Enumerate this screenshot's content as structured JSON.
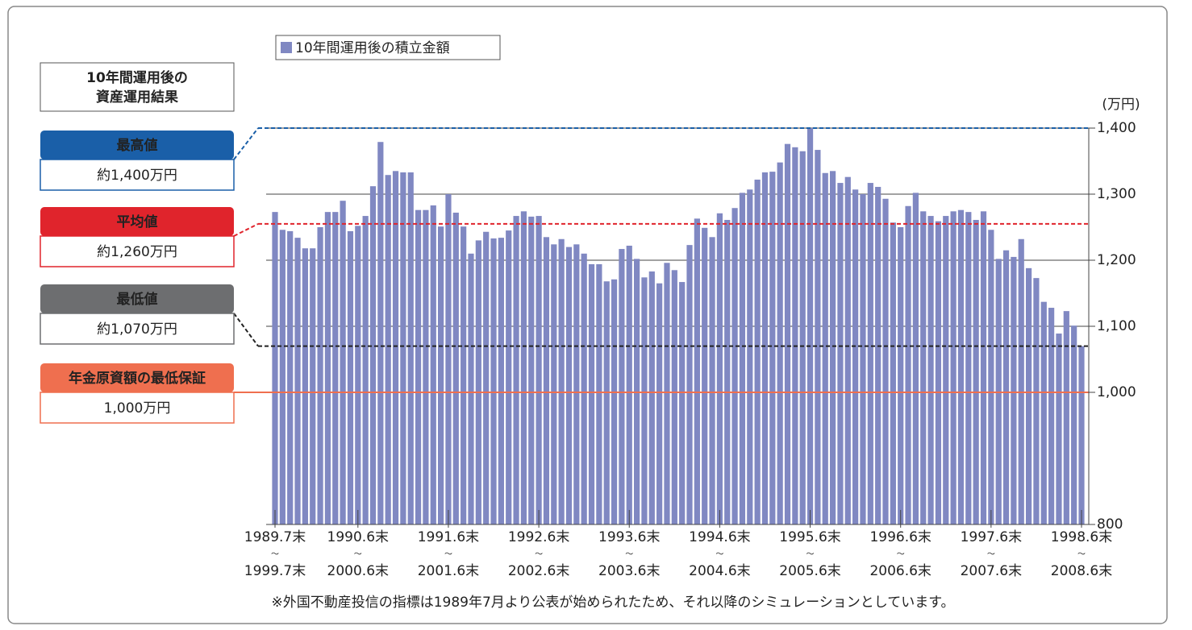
{
  "chart_data": {
    "type": "bar",
    "panel_title": [
      "10年間運用後の",
      "資産運用結果"
    ],
    "unit": "(万円)",
    "note": "※外国不動産投信の指標は1989年7月より公表が始められたため、それ以降のシミュレーションとしています。",
    "series": [
      {
        "name": "10年間運用後の積立金額",
        "color": "#8088c2",
        "values": [
          1273,
          1246,
          1244,
          1234,
          1218,
          1218,
          1250,
          1273,
          1273,
          1290,
          1244,
          1252,
          1267,
          1312,
          1379,
          1329,
          1335,
          1333,
          1333,
          1276,
          1276,
          1283,
          1251,
          1300,
          1272,
          1251,
          1210,
          1230,
          1243,
          1233,
          1234,
          1245,
          1267,
          1274,
          1266,
          1267,
          1235,
          1224,
          1232,
          1220,
          1224,
          1210,
          1194,
          1194,
          1168,
          1171,
          1217,
          1222,
          1202,
          1174,
          1183,
          1165,
          1196,
          1185,
          1167,
          1223,
          1263,
          1249,
          1235,
          1271,
          1261,
          1279,
          1302,
          1307,
          1322,
          1333,
          1334,
          1348,
          1376,
          1371,
          1365,
          1400,
          1367,
          1332,
          1335,
          1317,
          1326,
          1307,
          1300,
          1317,
          1311,
          1293,
          1257,
          1250,
          1282,
          1302,
          1274,
          1267,
          1259,
          1267,
          1274,
          1276,
          1273,
          1261,
          1274,
          1246,
          1202,
          1215,
          1205,
          1232,
          1188,
          1173,
          1137,
          1128,
          1089,
          1123,
          1101,
          1070
        ]
      }
    ],
    "categories": [
      "1989.7末〜1999.7末",
      null,
      null,
      null,
      null,
      null,
      null,
      null,
      null,
      null,
      null,
      "1990.6末〜2000.6末",
      null,
      null,
      null,
      null,
      null,
      null,
      null,
      null,
      null,
      null,
      null,
      "1991.6末〜2001.6末",
      null,
      null,
      null,
      null,
      null,
      null,
      null,
      null,
      null,
      null,
      null,
      "1992.6末〜2002.6末",
      null,
      null,
      null,
      null,
      null,
      null,
      null,
      null,
      null,
      null,
      null,
      "1993.6末〜2003.6末",
      null,
      null,
      null,
      null,
      null,
      null,
      null,
      null,
      null,
      null,
      null,
      "1994.6末〜2004.6末",
      null,
      null,
      null,
      null,
      null,
      null,
      null,
      null,
      null,
      null,
      null,
      "1995.6末〜2005.6末",
      null,
      null,
      null,
      null,
      null,
      null,
      null,
      null,
      null,
      null,
      null,
      "1996.6末〜2006.6末",
      null,
      null,
      null,
      null,
      null,
      null,
      null,
      null,
      null,
      null,
      null,
      "1997.6末〜2007.6末",
      null,
      null,
      null,
      null,
      null,
      null,
      null,
      null,
      null,
      null,
      null,
      "1998.6末〜2008.6末"
    ],
    "ylim": [
      800,
      1400
    ],
    "yticks": [
      800,
      {
        "value": 1000,
        "label": "1,000"
      },
      {
        "value": 1100,
        "label": "1,100"
      },
      {
        "value": 1200,
        "label": "1,200"
      },
      {
        "value": 1300,
        "label": "1,300"
      },
      {
        "value": 1400,
        "label": "1,400"
      }
    ],
    "grid": true,
    "reference_lines": [
      {
        "value": 1400,
        "color": "#1a5fa8",
        "style": "dashed",
        "head": "最高値",
        "text": "約1,400万円"
      },
      {
        "value": 1255,
        "color": "#e0242c",
        "style": "dashed",
        "head": "平均値",
        "text": "約1,260万円"
      },
      {
        "value": 1070,
        "color": "#222222",
        "style": "dashed",
        "head": "最低値",
        "text": "約1,070万円",
        "head_color": "#6d6e70"
      },
      {
        "value": 1000,
        "color": "#ef6f4f",
        "style": "solid",
        "head": "年金原資額の最低保証",
        "text": "1,000万円"
      }
    ]
  }
}
